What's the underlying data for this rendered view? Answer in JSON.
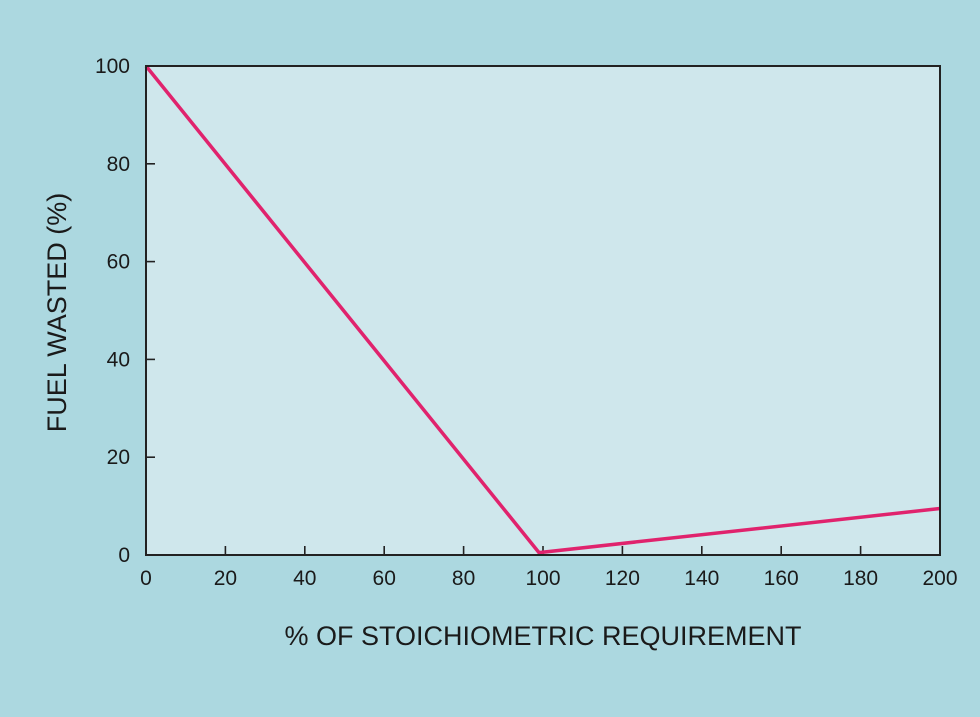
{
  "colors": {
    "page_background": "#acd8e0",
    "plot_background": "#cfe7ec",
    "axis": "#222222",
    "series": "#e0236d",
    "text": "#1a1a1a"
  },
  "chart_data": {
    "type": "line",
    "title": "",
    "xlabel": "% OF STOICHIOMETRIC REQUIREMENT",
    "ylabel": "FUEL WASTED (%)",
    "xlim": [
      0,
      200
    ],
    "ylim": [
      0,
      100
    ],
    "x_ticks": [
      0,
      20,
      40,
      60,
      80,
      100,
      120,
      140,
      160,
      180,
      200
    ],
    "x_tick_labels": [
      "0",
      "20",
      "40",
      "60",
      "80",
      "100",
      "120",
      "140",
      "160",
      "180",
      "200"
    ],
    "y_ticks": [
      0,
      20,
      40,
      60,
      80,
      100
    ],
    "y_tick_labels": [
      "0",
      "20",
      "40",
      "60",
      "80",
      "100"
    ],
    "grid": false,
    "legend": "none",
    "series": [
      {
        "x": [
          0,
          99,
          200
        ],
        "y": [
          100,
          0.5,
          9.5
        ]
      }
    ]
  }
}
